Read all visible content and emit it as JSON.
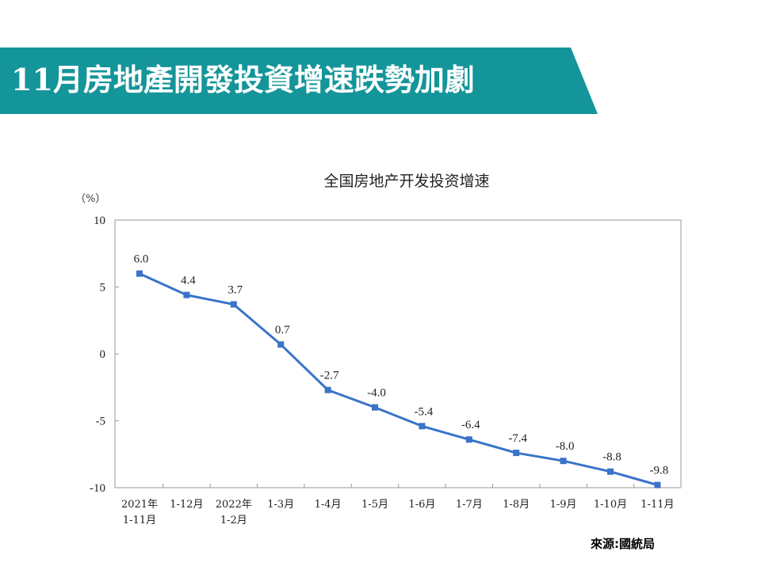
{
  "header": {
    "title": "11月房地產開發投資增速跌勢加劇",
    "banner_color": "#14959a"
  },
  "source": "來源:國統局",
  "chart_data": {
    "type": "line",
    "title": "全国房地产开发投资增速",
    "unit": "（%）",
    "categories": [
      [
        "2021年",
        "1-11月"
      ],
      [
        "1-12月"
      ],
      [
        "2022年",
        "1-2月"
      ],
      [
        "1-3月"
      ],
      [
        "1-4月"
      ],
      [
        "1-5月"
      ],
      [
        "1-6月"
      ],
      [
        "1-7月"
      ],
      [
        "1-8月"
      ],
      [
        "1-9月"
      ],
      [
        "1-10月"
      ],
      [
        "1-11月"
      ]
    ],
    "values": [
      6.0,
      4.4,
      3.7,
      0.7,
      -2.7,
      -4.0,
      -5.4,
      -6.4,
      -7.4,
      -8.0,
      -8.8,
      -9.8
    ],
    "data_labels": [
      "6.0",
      "4.4",
      "3.7",
      "0.7",
      "-2.7",
      "-4.0",
      "-5.4",
      "-6.4",
      "-7.4",
      "-8.0",
      "-8.8",
      "-9.8"
    ],
    "ylim": [
      -10,
      10
    ],
    "yticks": [
      10,
      5,
      0,
      -5,
      -10
    ],
    "line_color": "#3a73c9",
    "grid": false
  }
}
